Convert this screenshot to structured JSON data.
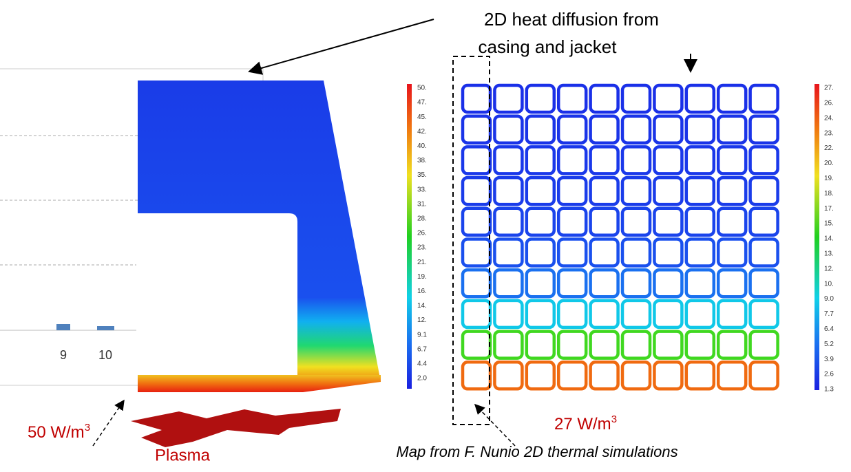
{
  "callout": {
    "lines": [
      "2D heat diffusion from",
      "casing and jacket"
    ]
  },
  "left_chart": {
    "x_labels": [
      "9",
      "10"
    ]
  },
  "left_map": {
    "flux_label": "50 W/m",
    "flux_exponent": "3",
    "colorbar": [
      "50.",
      "47.",
      "45.",
      "42.",
      "40.",
      "38.",
      "35.",
      "33.",
      "31.",
      "28.",
      "26.",
      "23.",
      "21.",
      "19.",
      "16.",
      "14.",
      "12.",
      "9.1",
      "6.7",
      "4.4",
      "2.0"
    ]
  },
  "plasma_label": "Plasma",
  "right_map": {
    "flux_label": "27 W/m",
    "flux_exponent": "3",
    "colorbar": [
      "27.",
      "26.",
      "24.",
      "23.",
      "22.",
      "20.",
      "19.",
      "18.",
      "17.",
      "15.",
      "14.",
      "13.",
      "12.",
      "10.",
      "9.0",
      "7.7",
      "6.4",
      "5.2",
      "3.9",
      "2.6",
      "1.3"
    ]
  },
  "caption": "Map from F. Nunio 2D thermal simulations"
}
